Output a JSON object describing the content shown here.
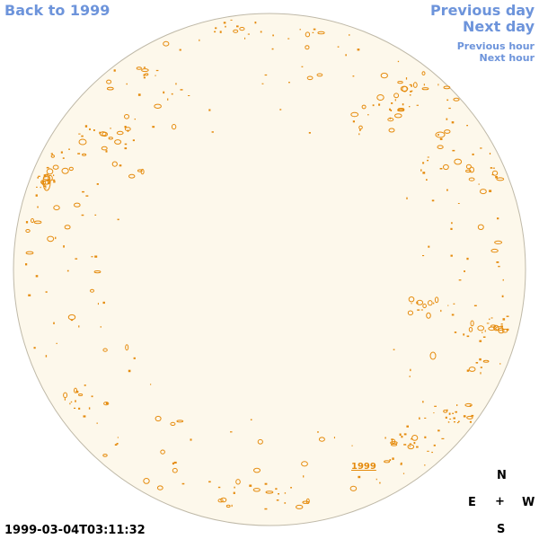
{
  "nav": {
    "back": "Back to 1999",
    "previous_day": "Previous day",
    "next_day": "Next day",
    "previous_hour": "Previous hour",
    "next_hour": "Next hour"
  },
  "disc": {
    "label": "1999",
    "fill_color": "#fdf8eb",
    "border_color": "#bfb9a8",
    "contour_color": "#e58b0d"
  },
  "compass": {
    "north": "N",
    "east": "E",
    "center": "+",
    "west": "W",
    "south": "S"
  },
  "timestamp": "1999-03-04T03:11:32",
  "colors": {
    "link": "#6d94db"
  }
}
